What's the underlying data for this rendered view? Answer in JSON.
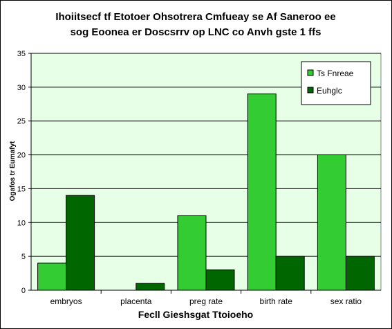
{
  "chart_data": {
    "type": "bar",
    "title_line1": "Ihoiitsecf tf Etotoer Ohsotrera Cmfueay se Af Saneroo ee",
    "title_line2": "sog Eoonea er  Doscsrrv op LNC co Anvh gste 1 ffs",
    "xlabel": "Fecll Gieshsgat Ttoioeho",
    "ylabel": "Ogafos tr Eumafyt",
    "categories": [
      "embryos",
      "placenta",
      "preg rate",
      "birth rate",
      "sex ratio"
    ],
    "series": [
      {
        "name": "Ts Fnreae",
        "color": "#33cc33",
        "values": [
          4,
          0,
          11,
          29,
          20
        ]
      },
      {
        "name": "Euhglc",
        "color": "#006600",
        "values": [
          14,
          1,
          3,
          5,
          5
        ]
      }
    ],
    "ylim": [
      0,
      35
    ],
    "yticks": [
      "0",
      "5",
      "10",
      "15",
      "20",
      "25",
      "30",
      "35"
    ],
    "grid": true,
    "legend_position": "top-right",
    "plot_background": "#e6ffe6"
  }
}
